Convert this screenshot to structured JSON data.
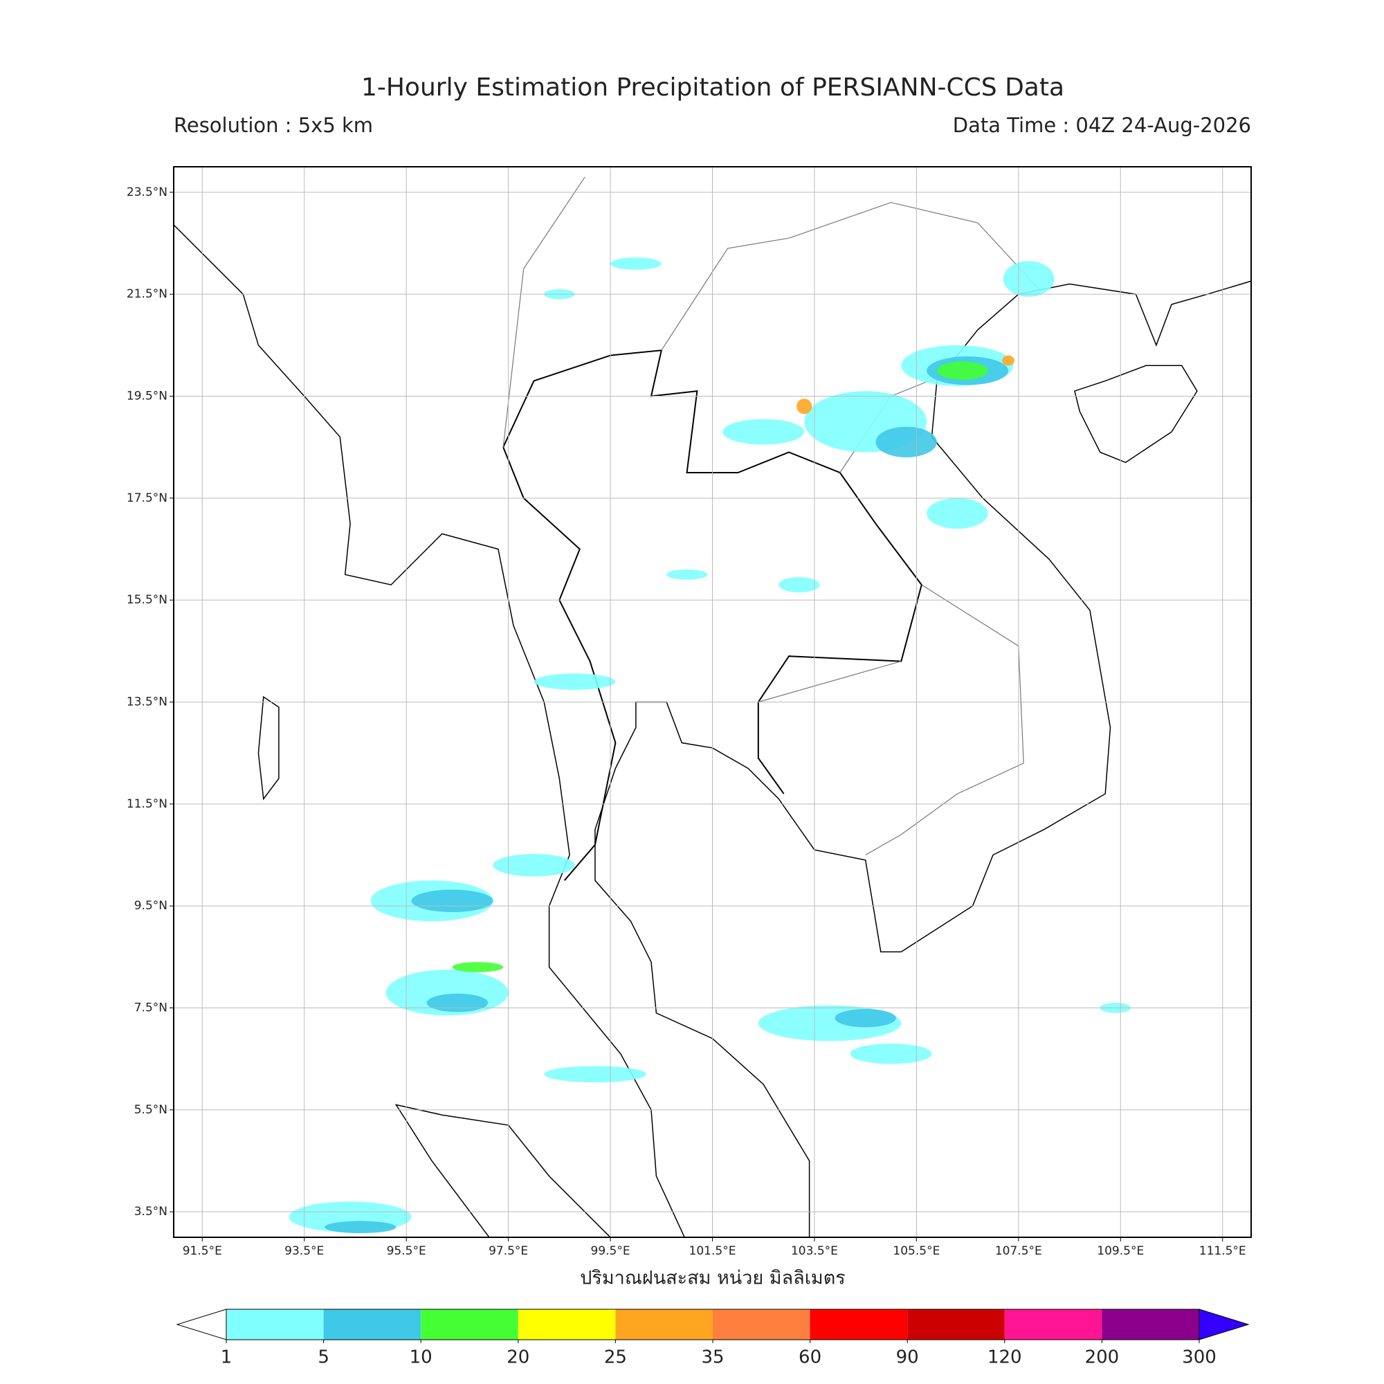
{
  "title": "1-Hourly Estimation Precipitation of PERSIANN-CCS Data",
  "resolution": "Resolution : 5x5 km",
  "data_time": "Data Time : 04Z 24-Aug-2026",
  "map": {
    "xlim": [
      90.94,
      112.06
    ],
    "ylim": [
      3.0,
      24.0
    ],
    "xticks": [
      {
        "value": 91.5,
        "label": "91.5°E"
      },
      {
        "value": 93.5,
        "label": "93.5°E"
      },
      {
        "value": 95.5,
        "label": "95.5°E"
      },
      {
        "value": 97.5,
        "label": "97.5°E"
      },
      {
        "value": 99.5,
        "label": "99.5°E"
      },
      {
        "value": 101.5,
        "label": "101.5°E"
      },
      {
        "value": 103.5,
        "label": "103.5°E"
      },
      {
        "value": 105.5,
        "label": "105.5°E"
      },
      {
        "value": 107.5,
        "label": "107.5°E"
      },
      {
        "value": 109.5,
        "label": "109.5°E"
      },
      {
        "value": 111.5,
        "label": "111.5°E"
      }
    ],
    "yticks": [
      {
        "value": 3.5,
        "label": "3.5°N"
      },
      {
        "value": 5.5,
        "label": "5.5°N"
      },
      {
        "value": 7.5,
        "label": "7.5°N"
      },
      {
        "value": 9.5,
        "label": "9.5°N"
      },
      {
        "value": 11.5,
        "label": "11.5°N"
      },
      {
        "value": 13.5,
        "label": "13.5°N"
      },
      {
        "value": 15.5,
        "label": "15.5°N"
      },
      {
        "value": 17.5,
        "label": "17.5°N"
      },
      {
        "value": 19.5,
        "label": "19.5°N"
      },
      {
        "value": 21.5,
        "label": "21.5°N"
      },
      {
        "value": 23.5,
        "label": "23.5°N"
      }
    ],
    "grid": true
  },
  "colorbar": {
    "label": "ปริมาณฝนสะสม หน่วย มิลลิเมตร",
    "levels": [
      1,
      5,
      10,
      20,
      25,
      35,
      60,
      90,
      120,
      200,
      300
    ],
    "colors": [
      "#80ffff",
      "#40c8e8",
      "#44ff33",
      "#ffff00",
      "#ffa520",
      "#ff7f3f",
      "#ff0000",
      "#cc0000",
      "#ff1493",
      "#8b008b"
    ],
    "under_color": "#ffffff",
    "over_color": "#3300ff"
  }
}
